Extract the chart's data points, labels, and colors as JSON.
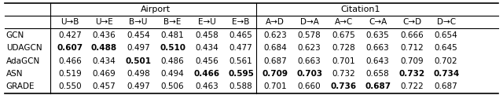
{
  "row_labels": [
    "GCN",
    "UDAGCN",
    "AdaGCN",
    "ASN",
    "GRADE"
  ],
  "airport_header": "Airport",
  "citation_header": "Citation1",
  "col_labels_airport": [
    "U→B",
    "U→E",
    "B→U",
    "B→E",
    "E→U",
    "E→B"
  ],
  "col_labels_citation": [
    "A→D",
    "D→A",
    "A→C",
    "C→A",
    "C→D",
    "D→C"
  ],
  "data_airport": [
    [
      0.427,
      0.436,
      0.454,
      0.481,
      0.458,
      0.465
    ],
    [
      0.607,
      0.488,
      0.497,
      0.51,
      0.434,
      0.477
    ],
    [
      0.466,
      0.434,
      0.501,
      0.486,
      0.456,
      0.561
    ],
    [
      0.519,
      0.469,
      0.498,
      0.494,
      0.466,
      0.595
    ],
    [
      0.55,
      0.457,
      0.497,
      0.506,
      0.463,
      0.588
    ]
  ],
  "data_citation": [
    [
      0.623,
      0.578,
      0.675,
      0.635,
      0.666,
      0.654
    ],
    [
      0.684,
      0.623,
      0.728,
      0.663,
      0.712,
      0.645
    ],
    [
      0.687,
      0.663,
      0.701,
      0.643,
      0.709,
      0.702
    ],
    [
      0.709,
      0.703,
      0.732,
      0.658,
      0.732,
      0.734
    ],
    [
      0.701,
      0.66,
      0.736,
      0.687,
      0.722,
      0.687
    ]
  ],
  "bold_airport": [
    [
      false,
      false,
      false,
      false,
      false,
      false
    ],
    [
      true,
      true,
      false,
      true,
      false,
      false
    ],
    [
      false,
      false,
      true,
      false,
      false,
      false
    ],
    [
      false,
      false,
      false,
      false,
      true,
      true
    ],
    [
      false,
      false,
      false,
      false,
      false,
      false
    ]
  ],
  "bold_citation": [
    [
      false,
      false,
      false,
      false,
      false,
      false
    ],
    [
      false,
      false,
      false,
      false,
      false,
      false
    ],
    [
      false,
      false,
      false,
      false,
      false,
      false
    ],
    [
      true,
      true,
      false,
      false,
      true,
      true
    ],
    [
      false,
      false,
      true,
      true,
      false,
      false
    ]
  ],
  "figsize": [
    6.4,
    1.21
  ],
  "dpi": 100,
  "font_size": 7.5,
  "header_font_size": 8.0
}
